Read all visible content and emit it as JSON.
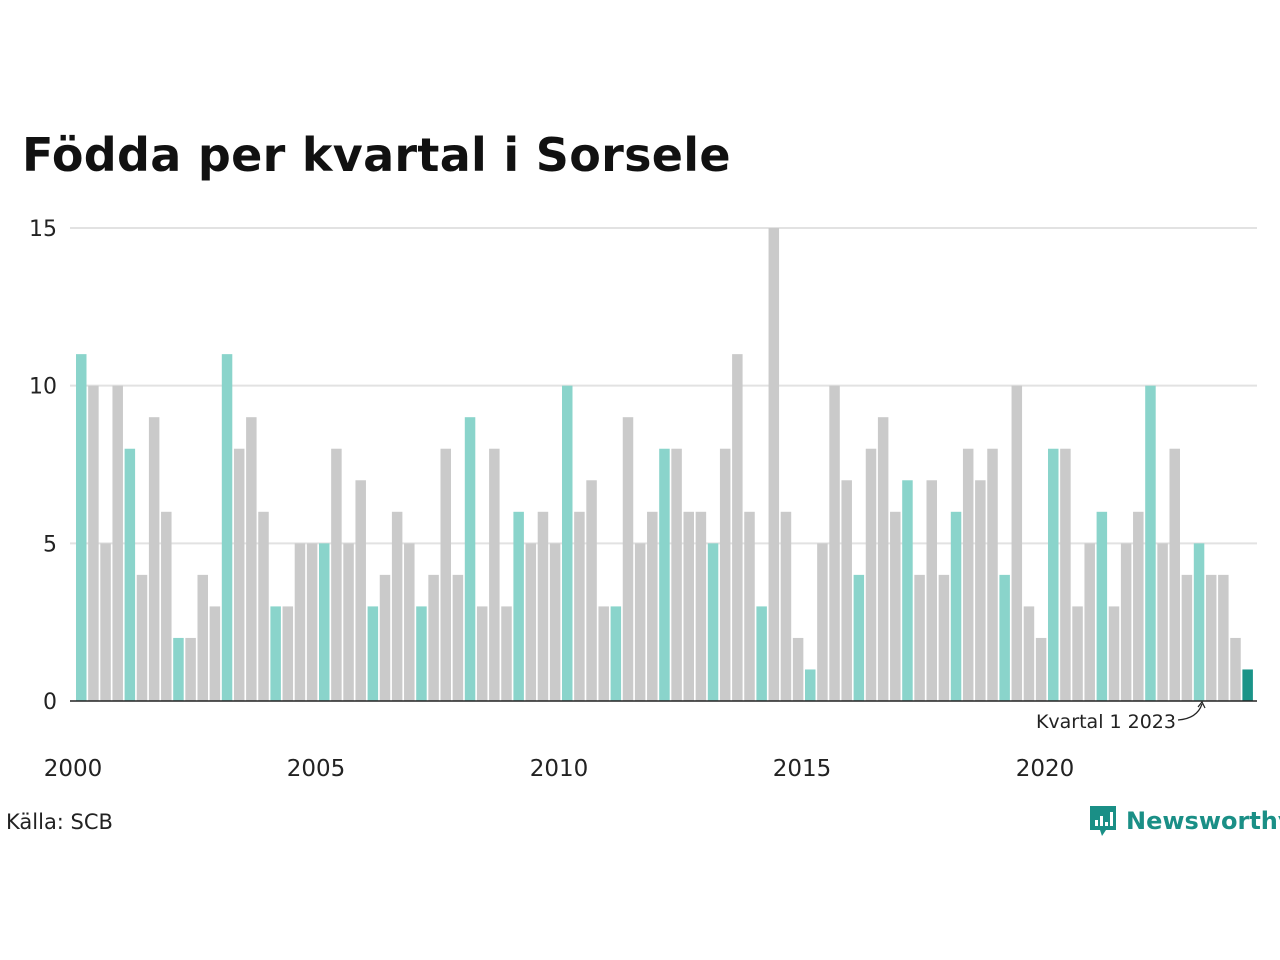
{
  "chart_data": {
    "type": "bar",
    "title": "Födda per kvartal i Sorsele",
    "ylim": [
      0,
      15
    ],
    "yticks": [
      0,
      5,
      10,
      15
    ],
    "xtick_labels": [
      "2000",
      "2005",
      "2010",
      "2015",
      "2020"
    ],
    "grid": true,
    "categories": [
      "2000 K1",
      "2000 K2",
      "2000 K3",
      "2000 K4",
      "2001 K1",
      "2001 K2",
      "2001 K3",
      "2001 K4",
      "2002 K1",
      "2002 K2",
      "2002 K3",
      "2002 K4",
      "2003 K1",
      "2003 K2",
      "2003 K3",
      "2003 K4",
      "2004 K1",
      "2004 K2",
      "2004 K3",
      "2004 K4",
      "2005 K1",
      "2005 K2",
      "2005 K3",
      "2005 K4",
      "2006 K1",
      "2006 K2",
      "2006 K3",
      "2006 K4",
      "2007 K1",
      "2007 K2",
      "2007 K3",
      "2007 K4",
      "2008 K1",
      "2008 K2",
      "2008 K3",
      "2008 K4",
      "2009 K1",
      "2009 K2",
      "2009 K3",
      "2009 K4",
      "2010 K1",
      "2010 K2",
      "2010 K3",
      "2010 K4",
      "2011 K1",
      "2011 K2",
      "2011 K3",
      "2011 K4",
      "2012 K1",
      "2012 K2",
      "2012 K3",
      "2012 K4",
      "2013 K1",
      "2013 K2",
      "2013 K3",
      "2013 K4",
      "2014 K1",
      "2014 K2",
      "2014 K3",
      "2014 K4",
      "2015 K1",
      "2015 K2",
      "2015 K3",
      "2015 K4",
      "2016 K1",
      "2016 K2",
      "2016 K3",
      "2016 K4",
      "2017 K1",
      "2017 K2",
      "2017 K3",
      "2017 K4",
      "2018 K1",
      "2018 K2",
      "2018 K3",
      "2018 K4",
      "2019 K1",
      "2019 K2",
      "2019 K3",
      "2019 K4",
      "2020 K1",
      "2020 K2",
      "2020 K3",
      "2020 K4",
      "2021 K1",
      "2021 K2",
      "2021 K3",
      "2021 K4",
      "2022 K1",
      "2022 K2",
      "2022 K3",
      "2022 K4",
      "2023 K1",
      "2023 K2",
      "2023 K3",
      "2023 K4",
      "2024 K1"
    ],
    "values": [
      11,
      10,
      5,
      10,
      8,
      4,
      9,
      6,
      2,
      2,
      4,
      3,
      11,
      8,
      9,
      6,
      3,
      3,
      5,
      5,
      5,
      8,
      5,
      7,
      3,
      4,
      6,
      5,
      3,
      4,
      8,
      4,
      9,
      3,
      8,
      3,
      6,
      5,
      6,
      5,
      10,
      6,
      7,
      3,
      3,
      9,
      5,
      6,
      8,
      8,
      6,
      6,
      5,
      8,
      11,
      6,
      3,
      15,
      6,
      2,
      1,
      5,
      10,
      7,
      4,
      8,
      9,
      6,
      7,
      4,
      7,
      4,
      6,
      8,
      7,
      8,
      4,
      10,
      3,
      2,
      8,
      8,
      3,
      5,
      6,
      3,
      5,
      6,
      10,
      5,
      8,
      4,
      5,
      4,
      4,
      2,
      1
    ],
    "highlight_color": "#8ad4cb",
    "bar_color": "#cacaca",
    "latest_color": "#1a9488",
    "annotation": "Kvartal 1 2023",
    "source": "Källa: SCB"
  },
  "brand": {
    "name": "Newsworthy",
    "icon": "newsworthy-logo-icon"
  }
}
